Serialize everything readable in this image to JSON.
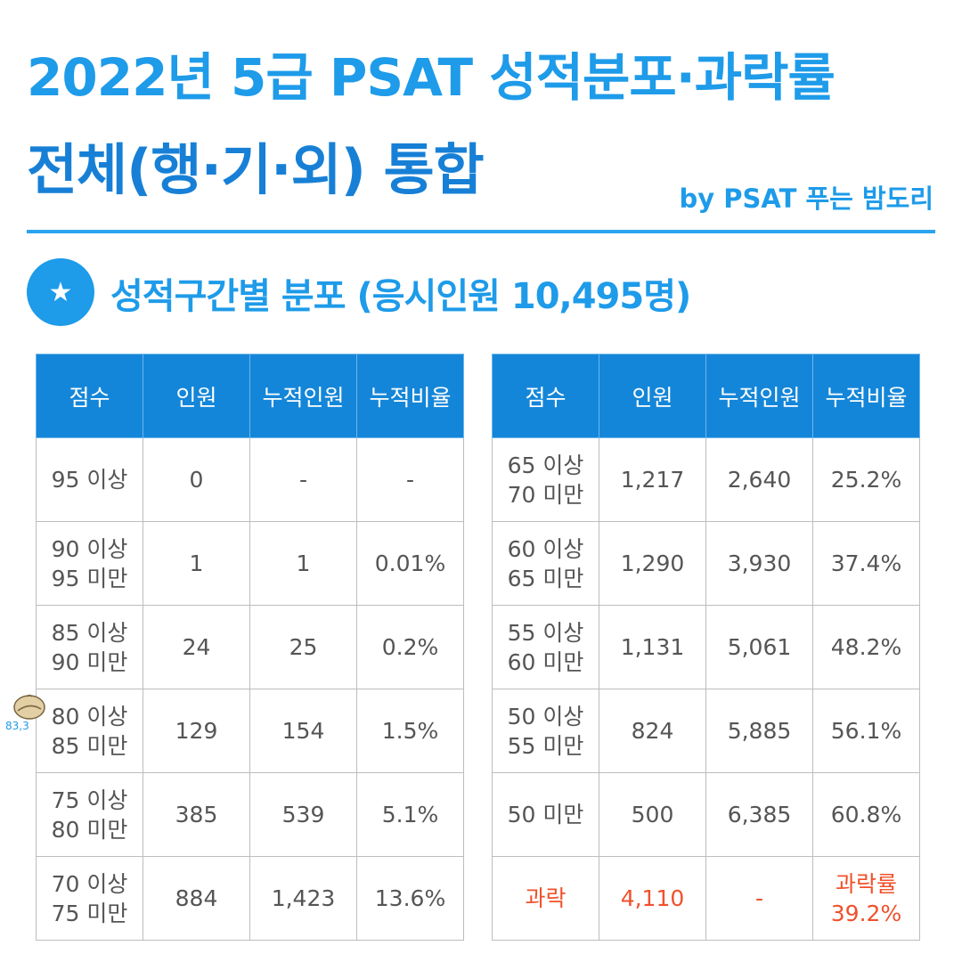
{
  "header": {
    "title_line1": "2022년 5급 PSAT 성적분포·과락률",
    "title_line2": "전체(행·기·외) 통합",
    "byline": "by PSAT 푸는 밤도리"
  },
  "section": {
    "icon": "star-icon",
    "title": "성적구간별 분포 (응시인원 10,495명)"
  },
  "columns": [
    "점수",
    "인원",
    "누적인원",
    "누적비율"
  ],
  "left_table": {
    "rows": [
      {
        "score": [
          "95 이상"
        ],
        "count": "0",
        "cumulative": "-",
        "ratio": "-"
      },
      {
        "score": [
          "90 이상",
          "95 미만"
        ],
        "count": "1",
        "cumulative": "1",
        "ratio": "0.01%"
      },
      {
        "score": [
          "85 이상",
          "90 미만"
        ],
        "count": "24",
        "cumulative": "25",
        "ratio": "0.2%"
      },
      {
        "score": [
          "80 이상",
          "85 미만"
        ],
        "count": "129",
        "cumulative": "154",
        "ratio": "1.5%"
      },
      {
        "score": [
          "75 이상",
          "80 미만"
        ],
        "count": "385",
        "cumulative": "539",
        "ratio": "5.1%"
      },
      {
        "score": [
          "70 이상",
          "75 미만"
        ],
        "count": "884",
        "cumulative": "1,423",
        "ratio": "13.6%"
      }
    ]
  },
  "right_table": {
    "rows": [
      {
        "score": [
          "65 이상",
          "70 미만"
        ],
        "count": "1,217",
        "cumulative": "2,640",
        "ratio": "25.2%"
      },
      {
        "score": [
          "60 이상",
          "65 미만"
        ],
        "count": "1,290",
        "cumulative": "3,930",
        "ratio": "37.4%"
      },
      {
        "score": [
          "55 이상",
          "60 미만"
        ],
        "count": "1,131",
        "cumulative": "5,061",
        "ratio": "48.2%"
      },
      {
        "score": [
          "50 이상",
          "55 미만"
        ],
        "count": "824",
        "cumulative": "5,885",
        "ratio": "56.1%"
      },
      {
        "score": [
          "50 미만"
        ],
        "count": "500",
        "cumulative": "6,385",
        "ratio": "60.8%"
      }
    ],
    "fail_row": {
      "score": "과락",
      "count": "4,110",
      "cumulative": "-",
      "ratio_label": "과락률",
      "ratio": "39.2%"
    }
  },
  "sticker": {
    "icon": "chestnut-icon",
    "label": "83,3"
  },
  "colors": {
    "title_blue": "#1e9be9",
    "title_dark_blue": "#1780d6",
    "header_blue": "#1486d9",
    "fail_red": "#f0512c"
  }
}
